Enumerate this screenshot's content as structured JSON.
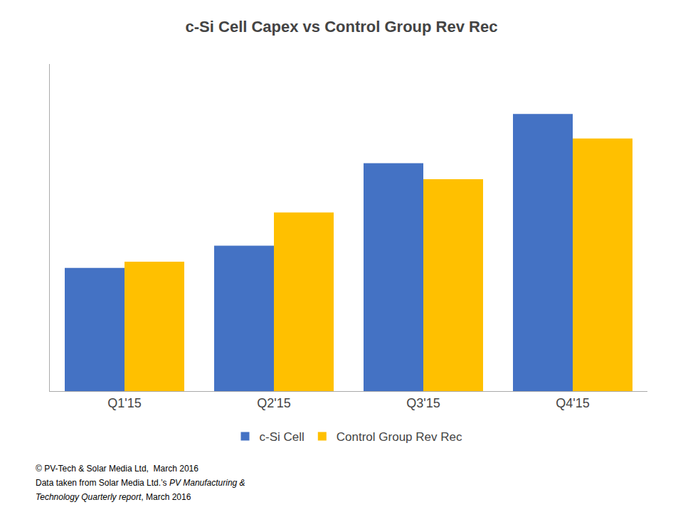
{
  "chart_data": {
    "type": "bar",
    "title": "c-Si Cell Capex vs Control Group Rev Rec",
    "categories": [
      "Q1'15",
      "Q2'15",
      "Q3'15",
      "Q4'15"
    ],
    "series": [
      {
        "name": "c-Si Cell",
        "color": "#4472C4",
        "values": [
          1.0,
          1.18,
          1.85,
          2.25
        ]
      },
      {
        "name": "Control Group Rev Rec",
        "color": "#FFC000",
        "values": [
          1.05,
          1.45,
          1.72,
          2.05
        ]
      }
    ],
    "ylim": [
      0,
      2.655
    ],
    "tick_labels": "x",
    "grid": false,
    "legend": "bottom",
    "annotations": [
      "© PV-Tech & Solar Media Ltd,  March 2016",
      "Data taken from Solar Media Ltd.’s ",
      "PV Manufacturing &",
      "Technology Quarterly report",
      ", March 2016"
    ]
  }
}
